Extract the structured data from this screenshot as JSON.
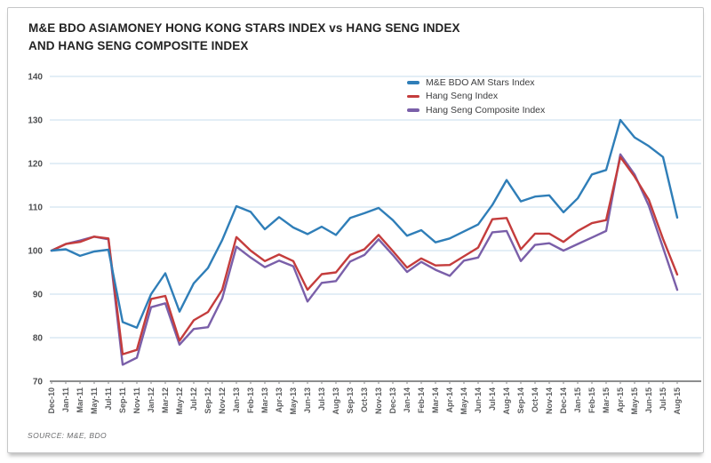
{
  "card": {
    "title_line1": "M&E BDO ASIAMONEY HONG KONG STARS INDEX vs HANG SENG INDEX",
    "title_line2": "AND HANG SENG COMPOSITE INDEX",
    "source": "SOURCE: M&E, BDO"
  },
  "chart_data": {
    "type": "line",
    "title": "M&E BDO ASIAMONEY HONG KONG STARS INDEX vs HANG SENG INDEX AND HANG SENG COMPOSITE INDEX",
    "x_labels": [
      "Dec-10",
      "Jan-11",
      "Mar-11",
      "May-11",
      "Jul-11",
      "Sep-11",
      "Nov-11",
      "Jan-12",
      "Mar-12",
      "May-12",
      "Jul-12",
      "Sep-12",
      "Nov-12",
      "Jan-13",
      "Feb-13",
      "Mar-13",
      "Apr-13",
      "May-13",
      "Jun-13",
      "Jul-13",
      "Aug-13",
      "Sep-13",
      "Oct-13",
      "Nov-13",
      "Dec-13",
      "Jan-14",
      "Feb-14",
      "Mar-14",
      "Apr-14",
      "May-14",
      "Jun-14",
      "Jul-14",
      "Aug-14",
      "Sep-14",
      "Oct-14",
      "Nov-14",
      "Dec-14",
      "Jan-15",
      "Feb-15",
      "Mar-15",
      "Apr-15",
      "May-15",
      "Jun-15",
      "Jul-15",
      "Aug-15"
    ],
    "series": [
      {
        "name": "M&E BDO AM Stars Index",
        "color": "#2f7eb8",
        "values": [
          100,
          100.3,
          98.8,
          99.8,
          100.2,
          83.6,
          82.3,
          90,
          94.8,
          86,
          92.5,
          96,
          102.4,
          110.2,
          108.9,
          104.9,
          107.7,
          105.3,
          103.8,
          105.5,
          103.6,
          107.5,
          108.6,
          109.8,
          107,
          103.4,
          104.7,
          101.9,
          102.8,
          104.4,
          106,
          110.5,
          116.2,
          111.3,
          112.4,
          112.7,
          108.8,
          112,
          117.5,
          118.5,
          130,
          126,
          124,
          121.5,
          107.6
        ]
      },
      {
        "name": "Hang Seng Index",
        "color": "#c43c3c",
        "values": [
          100,
          101.5,
          102,
          103.2,
          102.8,
          76.2,
          77.2,
          88.9,
          89.6,
          79.3,
          84,
          85.9,
          91,
          103.1,
          100,
          97.6,
          99.1,
          97.6,
          91,
          94.6,
          95,
          99,
          100.3,
          103.6,
          99.9,
          96.1,
          98.2,
          96.6,
          96.7,
          98.7,
          100.7,
          107.2,
          107.5,
          100.3,
          103.9,
          103.9,
          102,
          104.5,
          106.3,
          107,
          121.5,
          117,
          111.7,
          102.7,
          94.5
        ]
      },
      {
        "name": "Hang Seng Composite Index",
        "color": "#7a5fa9",
        "values": [
          100,
          101.5,
          102.3,
          103.2,
          102.6,
          73.8,
          75.4,
          87,
          87.9,
          78.4,
          82,
          82.4,
          89,
          100.9,
          98.4,
          96.2,
          97.7,
          96.4,
          88.3,
          92.6,
          93,
          97.5,
          99,
          102.6,
          99,
          95.1,
          97.4,
          95.6,
          94.2,
          97.7,
          98.4,
          104.2,
          104.5,
          97.6,
          101.3,
          101.7,
          100,
          101.5,
          103,
          104.5,
          122.1,
          117.5,
          110.3,
          100.7,
          91
        ]
      }
    ],
    "ylim": [
      70,
      140
    ],
    "y_ticks": [
      140,
      130,
      120,
      110,
      100,
      90,
      80,
      70
    ],
    "grid": "horizontal",
    "legend_position": "top-right-of-plot",
    "colors": {
      "grid": "#c7dcec",
      "axis": "#48494b",
      "tick": "#8a8b8d",
      "y_label": "#4d4e50",
      "x_label": "#5b5c5e"
    }
  }
}
